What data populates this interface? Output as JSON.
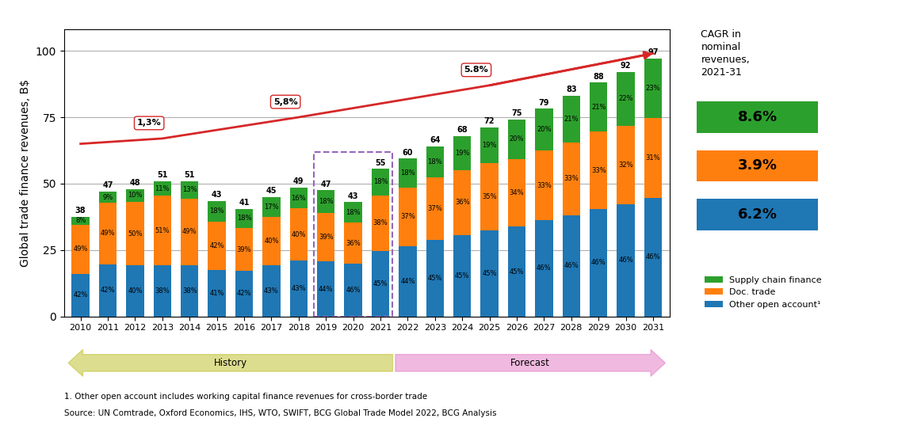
{
  "chart_data": {
    "type": "bar",
    "stacked": true,
    "ylabel": "Global trade finance revenues, B$",
    "categories": [
      "2010",
      "2011",
      "2012",
      "2013",
      "2014",
      "2015",
      "2016",
      "2017",
      "2018",
      "2019",
      "2020",
      "2021",
      "2022",
      "2023",
      "2024",
      "2025",
      "2026",
      "2027",
      "2028",
      "2029",
      "2030",
      "2031"
    ],
    "series": [
      {
        "name": "Other open account¹",
        "color": "#1f77b4",
        "cagr": "6.2%",
        "values": [
          15.96,
          19.74,
          19.2,
          19.38,
          19.38,
          17.63,
          17.22,
          19.35,
          21.07,
          20.68,
          19.78,
          24.75,
          26.4,
          28.8,
          30.6,
          32.4,
          33.75,
          36.34,
          38.18,
          40.48,
          42.32,
          44.62
        ],
        "share_labels": [
          "42%",
          "42%",
          "40%",
          "38%",
          "38%",
          "41%",
          "42%",
          "43%",
          "43%",
          "44%",
          "46%",
          "45%",
          "44%",
          "45%",
          "45%",
          "45%",
          "45%",
          "46%",
          "46%",
          "46%",
          "46%",
          "46%"
        ]
      },
      {
        "name": "Doc. trade",
        "color": "#ff7f0e",
        "cagr": "3.9%",
        "values": [
          18.62,
          23.03,
          24,
          26.01,
          24.99,
          18.06,
          15.99,
          18,
          19.6,
          18.33,
          15.48,
          20.9,
          22.2,
          23.68,
          24.48,
          25.2,
          25.5,
          26.07,
          27.39,
          29.04,
          29.44,
          30.07
        ],
        "share_labels": [
          "49%",
          "49%",
          "50%",
          "51%",
          "49%",
          "42%",
          "39%",
          "40%",
          "40%",
          "39%",
          "36%",
          "38%",
          "37%",
          "37%",
          "36%",
          "35%",
          "34%",
          "33%",
          "33%",
          "33%",
          "32%",
          "31%"
        ]
      },
      {
        "name": "Supply chain finance",
        "color": "#2ca02c",
        "cagr": "8.6%",
        "values": [
          3.04,
          4.23,
          4.8,
          5.61,
          6.63,
          7.74,
          7.38,
          7.65,
          7.84,
          8.46,
          7.74,
          9.9,
          10.8,
          11.52,
          12.92,
          13.68,
          15,
          15.8,
          17.43,
          18.48,
          20.24,
          22.31
        ],
        "share_labels": [
          "8%",
          "9%",
          "10%",
          "11%",
          "13%",
          "18%",
          "18%",
          "17%",
          "16%",
          "18%",
          "18%",
          "18%",
          "18%",
          "18%",
          "19%",
          "19%",
          "20%",
          "20%",
          "21%",
          "21%",
          "22%",
          "23%"
        ]
      }
    ],
    "totals": [
      38,
      47,
      48,
      51,
      51,
      43,
      41,
      45,
      49,
      47,
      43,
      55,
      60,
      64,
      68,
      72,
      75,
      79,
      83,
      88,
      92,
      97
    ],
    "trend_line": {
      "x": [
        "2010",
        "2013",
        "2018",
        "2025",
        "2031"
      ],
      "values": [
        65,
        67,
        75,
        87,
        99
      ],
      "color": "#d62728",
      "annotations": [
        {
          "text": "1,3%",
          "x": "2013"
        },
        {
          "text": "5,8%",
          "x": "2018"
        },
        {
          "text": "5.8%",
          "x": "2025"
        }
      ]
    },
    "highlight": {
      "x": [
        "2019",
        "2021"
      ],
      "y": [
        0,
        62
      ],
      "color": "#9467bd"
    },
    "periods": [
      {
        "label": "History",
        "from": "2010",
        "to": "2021",
        "color": "#bcbd22"
      },
      {
        "label": "Forecast",
        "from": "2022",
        "to": "2031",
        "color": "#e377c2"
      }
    ],
    "cagr_title": "CAGR in\nnominal\nrevenues,\n2021-31",
    "footnotes": [
      "1. Other open account includes working capital finance revenues for cross-border trade",
      "Source: UN Comtrade, Oxford Economics, IHS, WTO, SWIFT, BCG Global Trade Model 2022, BCG Analysis"
    ],
    "ylim": [
      0,
      108
    ],
    "yticks": [
      0,
      25,
      50,
      75,
      100
    ],
    "grid": true,
    "legend": "lower left"
  }
}
